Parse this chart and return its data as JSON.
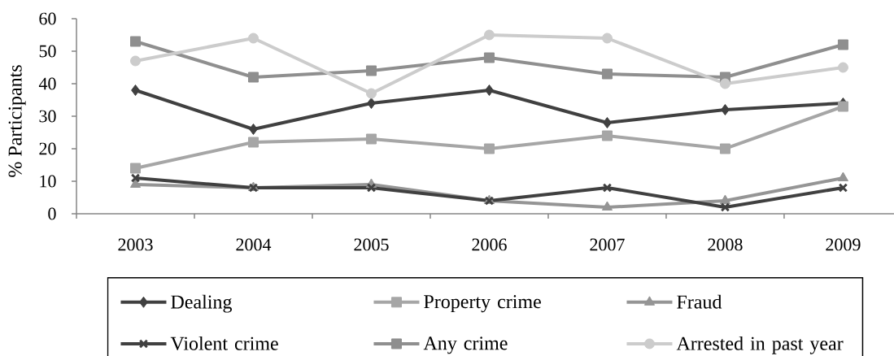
{
  "chart_data": {
    "type": "line",
    "ylabel": "% Participants",
    "categories": [
      "2003",
      "2004",
      "2005",
      "2006",
      "2007",
      "2008",
      "2009"
    ],
    "ylim": [
      0,
      60
    ],
    "yticks": [
      0,
      10,
      20,
      30,
      40,
      50,
      60
    ],
    "legend": "bottom",
    "line_style": "solid",
    "series": [
      {
        "name": "Dealing",
        "color": "#404040",
        "marker": "diamond",
        "values": [
          38,
          26,
          34,
          38,
          28,
          32,
          34
        ]
      },
      {
        "name": "Property crime",
        "color": "#a6a6a6",
        "marker": "square",
        "values": [
          14,
          22,
          23,
          20,
          24,
          20,
          33
        ]
      },
      {
        "name": "Fraud",
        "color": "#959595",
        "marker": "triangle",
        "values": [
          9,
          8,
          9,
          4,
          2,
          4,
          11
        ]
      },
      {
        "name": "Violent crime",
        "color": "#404040",
        "marker": "cross",
        "values": [
          11,
          8,
          8,
          4,
          8,
          2,
          8
        ]
      },
      {
        "name": "Any crime",
        "color": "#8f8f8f",
        "marker": "square",
        "values": [
          53,
          42,
          44,
          48,
          43,
          42,
          52
        ]
      },
      {
        "name": "Arrested in past year",
        "color": "#cccccc",
        "marker": "circle",
        "values": [
          47,
          54,
          37,
          55,
          54,
          40,
          45
        ]
      }
    ]
  }
}
